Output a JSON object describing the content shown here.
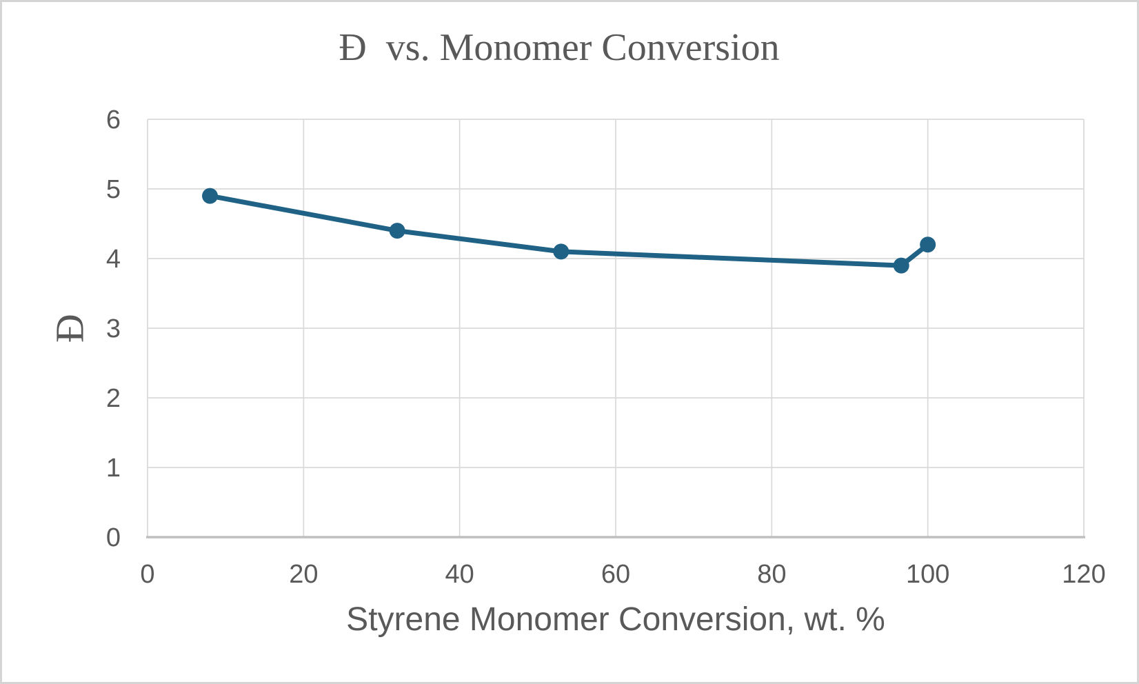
{
  "window": {
    "background": "#ffffff",
    "frame_border_color": "#d5d5d5"
  },
  "chart_data": {
    "type": "line",
    "title": "Đ  vs. Monomer Conversion",
    "xlabel": "Styrene Monomer Conversion, wt. %",
    "ylabel": "Đ",
    "xlim": [
      0,
      120
    ],
    "ylim": [
      0,
      6
    ],
    "x_ticks": [
      0,
      20,
      40,
      60,
      80,
      100,
      120
    ],
    "y_ticks": [
      0,
      1,
      2,
      3,
      4,
      5,
      6
    ],
    "grid": true,
    "legend": "none",
    "series": [
      {
        "name": "Đ",
        "marker": "circle",
        "color": "#1f6286",
        "points": [
          {
            "x": 8,
            "y": 4.9
          },
          {
            "x": 32,
            "y": 4.4
          },
          {
            "x": 53,
            "y": 4.1
          },
          {
            "x": 96.6,
            "y": 3.9
          },
          {
            "x": 100,
            "y": 4.2
          }
        ]
      }
    ],
    "colors": {
      "text": "#595959",
      "gridline": "#d9d9d9",
      "axis_line": "#bfbfbf"
    }
  }
}
